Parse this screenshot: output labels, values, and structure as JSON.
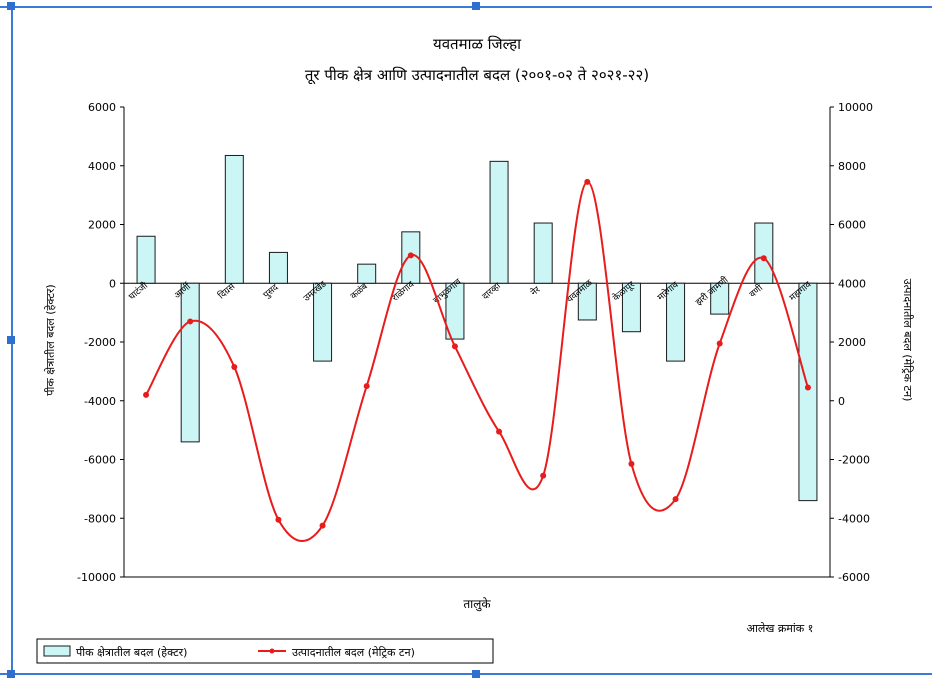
{
  "chart_data": {
    "type": "bar+line",
    "title": "यवतमाळ जिल्हा",
    "subtitle": "तूर पीक क्षेत्र आणि उत्पादनातील बदल (२००१-०२ ते २०२१-२२)",
    "xlabel": "तालुके",
    "ylabel_left": "पीक क्षेत्रातील बदल (हेक्टर)",
    "ylabel_right": "उत्पादनातील बदल (मेट्रिक टन)",
    "ylim_left": [
      -10000,
      6000
    ],
    "ylim_right": [
      -6000,
      10000
    ],
    "yticks_left": [
      "6000",
      "4000",
      "2000",
      "0",
      "-2000",
      "-4000",
      "-6000",
      "-8000",
      "-10000"
    ],
    "yticks_right": [
      "10000",
      "8000",
      "6000",
      "4000",
      "2000",
      "0",
      "-2000",
      "-4000",
      "-6000"
    ],
    "categories": [
      "घाटंजी",
      "आर्णी",
      "दिग्रस",
      "पुसद",
      "उमरखेड",
      "कळंब",
      "राळेगाव",
      "बाभुळगाव",
      "दारव्हा",
      "नेर",
      "यवतमाळ",
      "केळापूर",
      "मारेगाव",
      "झरी जामणी",
      "वणी",
      "महागाव"
    ],
    "series": [
      {
        "name": "पीक क्षेत्रातील बदल (हेक्टर)",
        "axis": "left",
        "kind": "bar",
        "values": [
          1600,
          -5400,
          4350,
          1050,
          -2650,
          650,
          1750,
          -1900,
          4150,
          2050,
          -1250,
          -1650,
          -2650,
          -1050,
          2050,
          -7400
        ]
      },
      {
        "name": "उत्पादनातील बदल (मेट्रिक टन)",
        "axis": "right",
        "kind": "line",
        "values": [
          200,
          2700,
          1150,
          -4050,
          -4250,
          500,
          4950,
          1850,
          -1050,
          -2550,
          7450,
          -2150,
          -3350,
          1950,
          4850,
          450
        ]
      }
    ],
    "legend": "bottom-left",
    "grid": false,
    "colors": {
      "bar_fill": "#ccf5f5",
      "bar_stroke": "#1a1a1a",
      "line": "#e81c1c"
    }
  },
  "note": "आलेख क्रमांक १"
}
